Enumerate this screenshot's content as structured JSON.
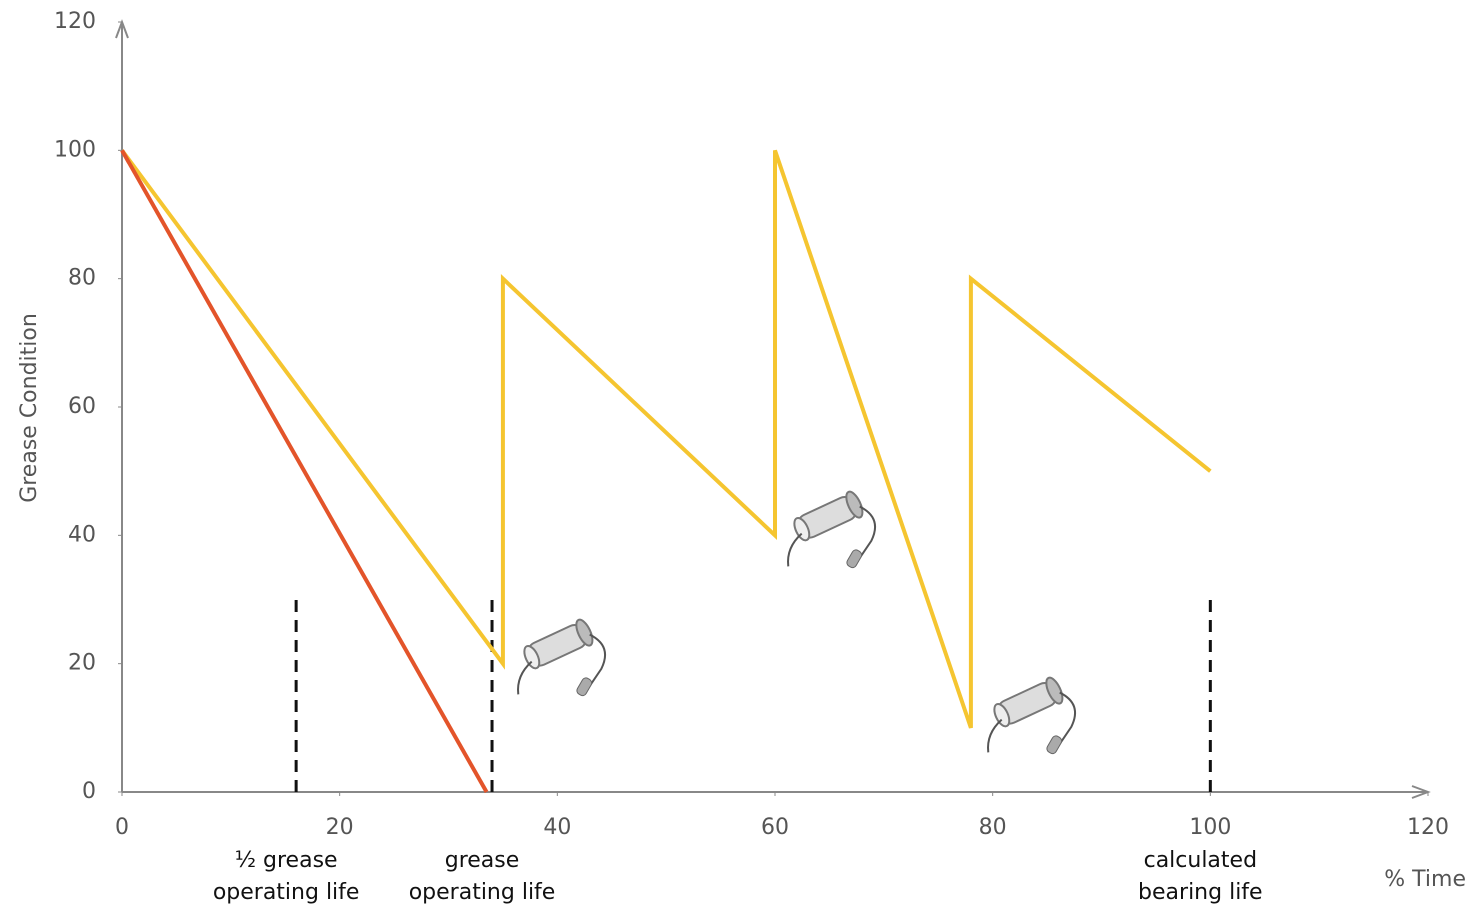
{
  "chart_data": {
    "type": "line",
    "y_label": "Grease Condition",
    "x_label": "% Time",
    "xlim": [
      0,
      120
    ],
    "ylim": [
      0,
      120
    ],
    "xticks": [
      0,
      20,
      40,
      60,
      80,
      100,
      120
    ],
    "yticks": [
      0,
      20,
      40,
      60,
      80,
      100,
      120
    ],
    "series": [
      {
        "color": "#f5c530",
        "x": [
          0,
          35,
          35,
          60,
          60,
          78,
          78,
          100
        ],
        "values": [
          100,
          20,
          80,
          40,
          100,
          10,
          80,
          50
        ]
      },
      {
        "color": "#e3542a",
        "x": [
          0,
          33.5
        ],
        "values": [
          100,
          0
        ]
      }
    ],
    "markers": [
      {
        "x": 16,
        "label": [
          "½ grease",
          "operating life"
        ]
      },
      {
        "x": 34,
        "label": [
          "grease",
          "operating life"
        ]
      },
      {
        "x": 100,
        "label": [
          "calculated",
          "bearing life"
        ]
      }
    ]
  }
}
